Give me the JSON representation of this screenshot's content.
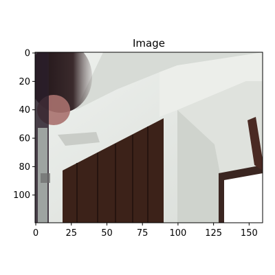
{
  "chart_data": {
    "type": "image",
    "title": "Image",
    "xlabel": "",
    "ylabel": "",
    "xlim": [
      -0.5,
      159.5
    ],
    "ylim": [
      119.5,
      -0.5
    ],
    "image_size": {
      "width": 160,
      "height": 120
    },
    "x_ticks": [
      0,
      25,
      50,
      75,
      100,
      125,
      150
    ],
    "y_ticks": [
      0,
      20,
      40,
      60,
      80,
      100
    ],
    "content_description_colors": {
      "wall": "#e3e6e1",
      "ceiling_shadow": "#c9ccc6",
      "wardrobe": "#3c2219",
      "window": "#ffffff",
      "figure_dark": "#1d1214",
      "skin": "#a9716e"
    }
  }
}
